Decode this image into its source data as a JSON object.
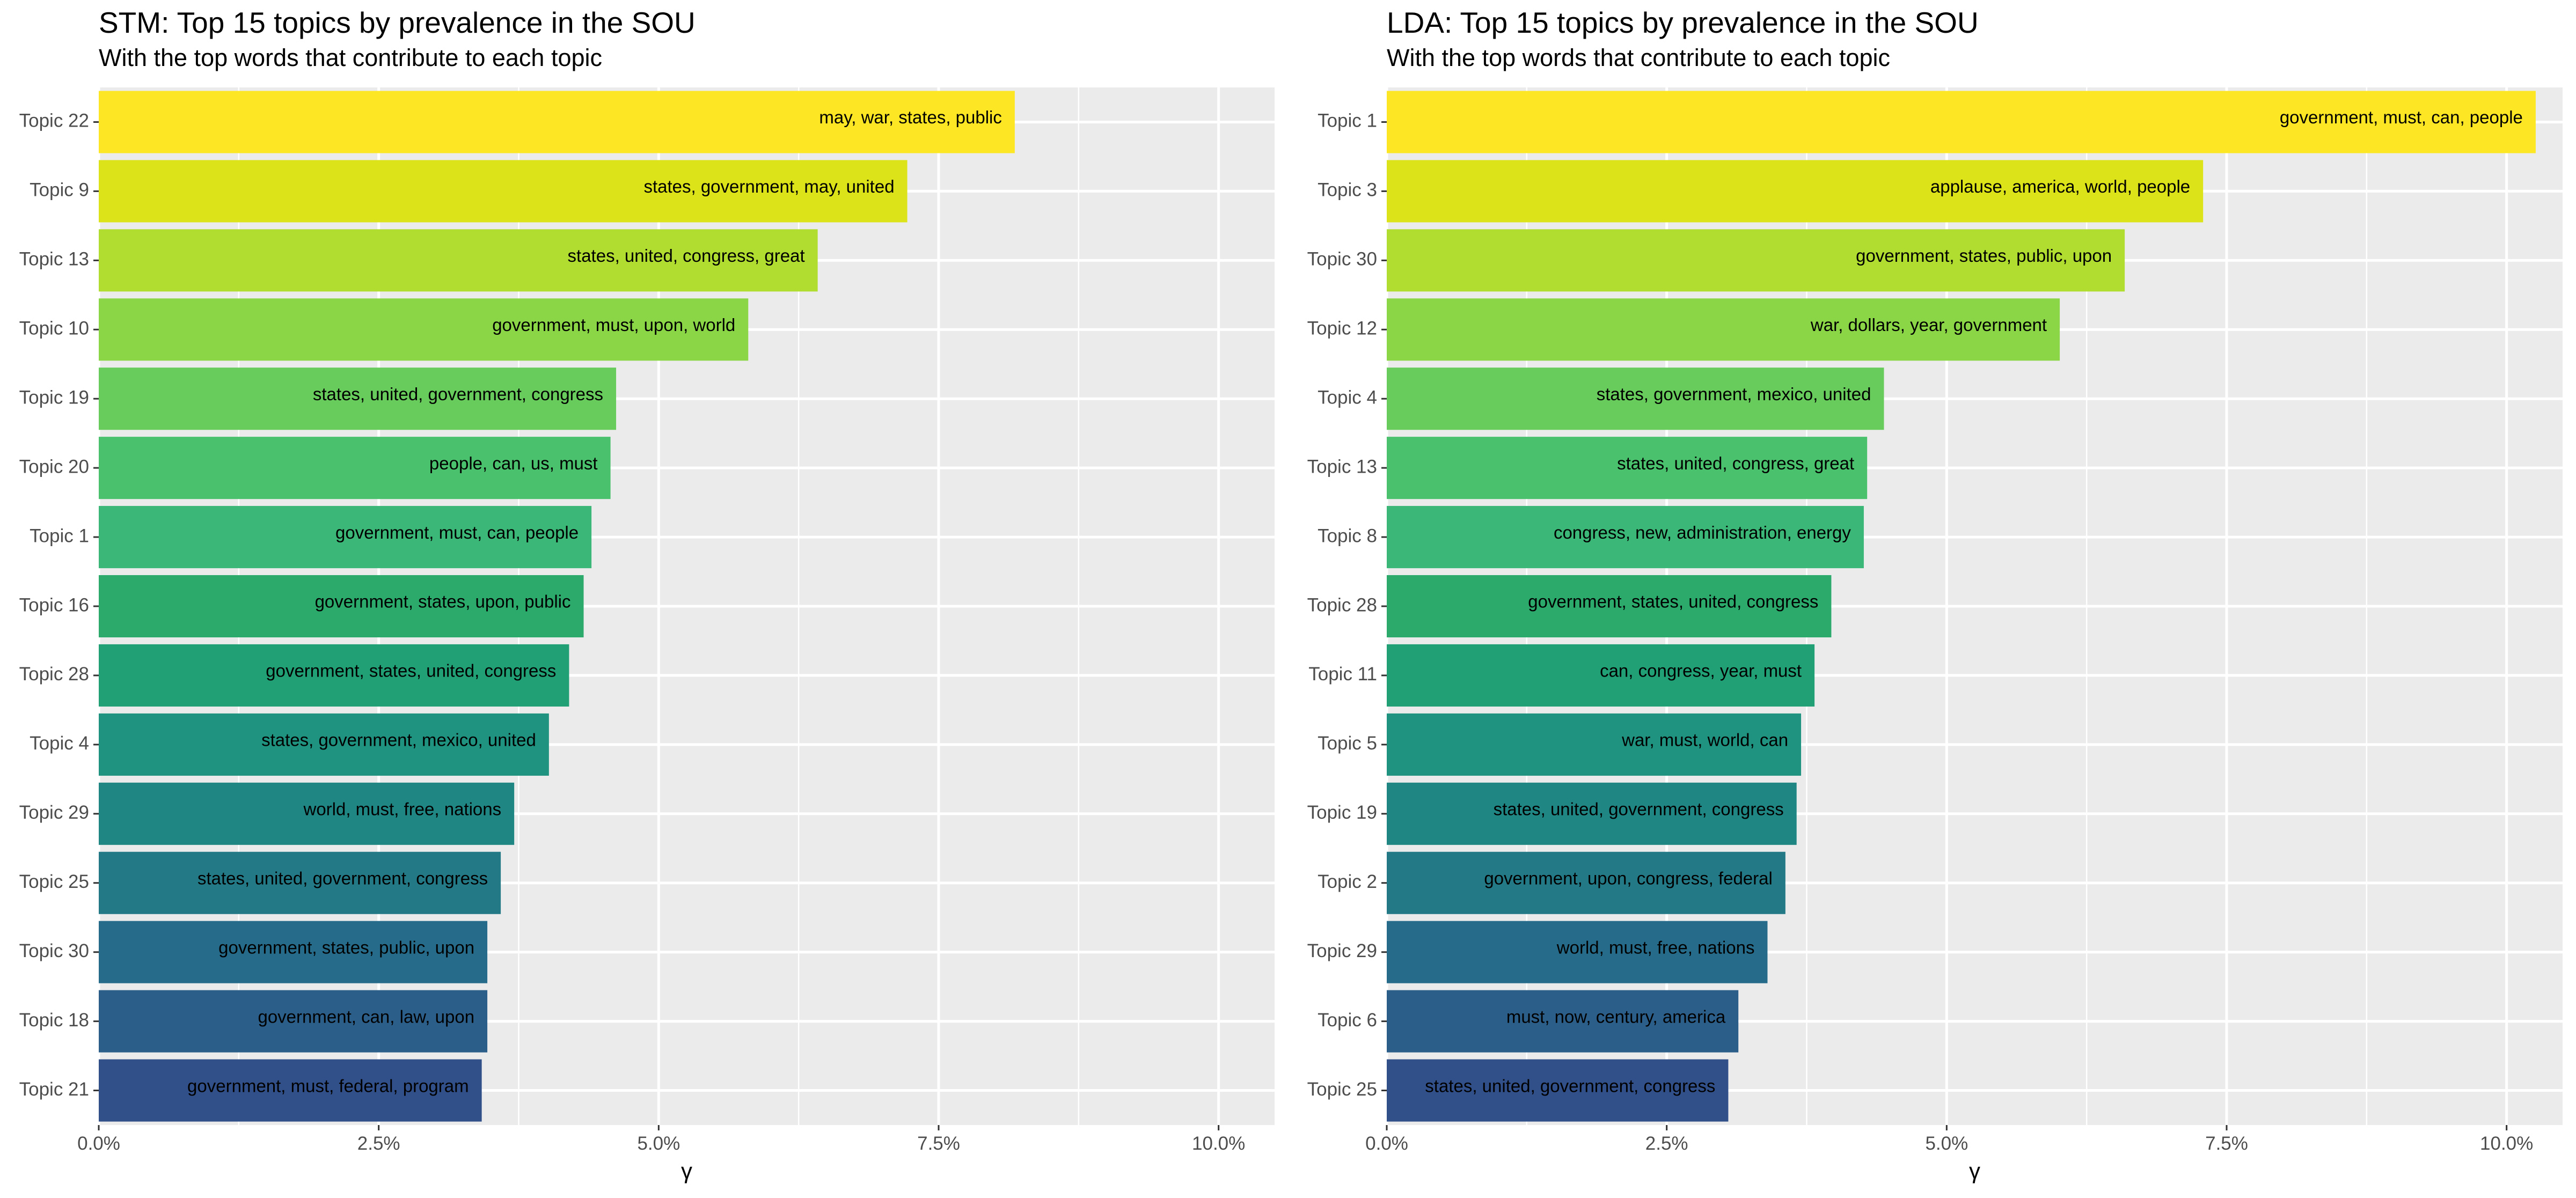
{
  "chart_data": [
    {
      "type": "bar",
      "orientation": "horizontal",
      "title": "STM: Top 15 topics by prevalence in the SOU",
      "subtitle": "With the top words that contribute to each topic",
      "xlabel": "γ",
      "ylabel": "",
      "xlim": [
        0,
        0.105
      ],
      "x_ticks": [
        0,
        0.025,
        0.05,
        0.075,
        0.1
      ],
      "x_tick_labels": [
        "0.0%",
        "2.5%",
        "5.0%",
        "7.5%",
        "10.0%"
      ],
      "grid": true,
      "legend": "none",
      "categories": [
        "Topic 22",
        "Topic 9",
        "Topic 13",
        "Topic 10",
        "Topic 19",
        "Topic 20",
        "Topic 1",
        "Topic 16",
        "Topic 28",
        "Topic 4",
        "Topic 29",
        "Topic 25",
        "Topic 30",
        "Topic 18",
        "Topic 21"
      ],
      "values": [
        0.0818,
        0.0722,
        0.0642,
        0.058,
        0.0462,
        0.0457,
        0.044,
        0.0433,
        0.042,
        0.0402,
        0.0371,
        0.0359,
        0.0347,
        0.0347,
        0.0342
      ],
      "labels": [
        "may, war, states, public",
        "states, government, may, united",
        "states, united, congress, great",
        "government, must, upon, world",
        "states, united, government, congress",
        "people, can, us, must",
        "government, must, can, people",
        "government, states, upon, public",
        "government, states, united, congress",
        "states, government, mexico, united",
        "world, must, free, nations",
        "states, united, government, congress",
        "government, states, public, upon",
        "government, can, law, upon",
        "government, must, federal, program"
      ],
      "colors": [
        "#FDE725",
        "#DCE319",
        "#B0DD2F",
        "#8BD646",
        "#68CC5C",
        "#4AC16D",
        "#3BB777",
        "#2BAA6C",
        "#21A076",
        "#1F937F",
        "#1F8683",
        "#237985",
        "#266C8A",
        "#2C5E8A",
        "#314F89"
      ]
    },
    {
      "type": "bar",
      "orientation": "horizontal",
      "title": "LDA: Top 15 topics by prevalence in the SOU",
      "subtitle": "With the top words that contribute to each topic",
      "xlabel": "γ",
      "ylabel": "",
      "xlim": [
        0,
        0.105
      ],
      "x_ticks": [
        0,
        0.025,
        0.05,
        0.075,
        0.1
      ],
      "x_tick_labels": [
        "0.0%",
        "2.5%",
        "5.0%",
        "7.5%",
        "10.0%"
      ],
      "grid": true,
      "legend": "none",
      "categories": [
        "Topic 1",
        "Topic 3",
        "Topic 30",
        "Topic 12",
        "Topic 4",
        "Topic 13",
        "Topic 8",
        "Topic 28",
        "Topic 11",
        "Topic 5",
        "Topic 19",
        "Topic 2",
        "Topic 29",
        "Topic 6",
        "Topic 25"
      ],
      "values": [
        0.1026,
        0.0729,
        0.0659,
        0.0601,
        0.0444,
        0.0429,
        0.0426,
        0.0397,
        0.0382,
        0.037,
        0.0366,
        0.0356,
        0.034,
        0.0314,
        0.0305
      ],
      "labels": [
        "government, must, can, people",
        "applause, america, world, people",
        "government, states, public, upon",
        "war, dollars, year, government",
        "states, government, mexico, united",
        "states, united, congress, great",
        "congress, new, administration, energy",
        "government, states, united, congress",
        "can, congress, year, must",
        "war, must, world, can",
        "states, united, government, congress",
        "government, upon, congress, federal",
        "world, must, free, nations",
        "must, now, century, america",
        "states, united, government, congress"
      ],
      "colors": [
        "#FDE725",
        "#DCE319",
        "#B0DD2F",
        "#8BD646",
        "#68CC5C",
        "#4AC16D",
        "#3BB777",
        "#2BAA6C",
        "#21A076",
        "#1F937F",
        "#1F8683",
        "#237985",
        "#266C8A",
        "#2C5E8A",
        "#314F89"
      ]
    }
  ]
}
